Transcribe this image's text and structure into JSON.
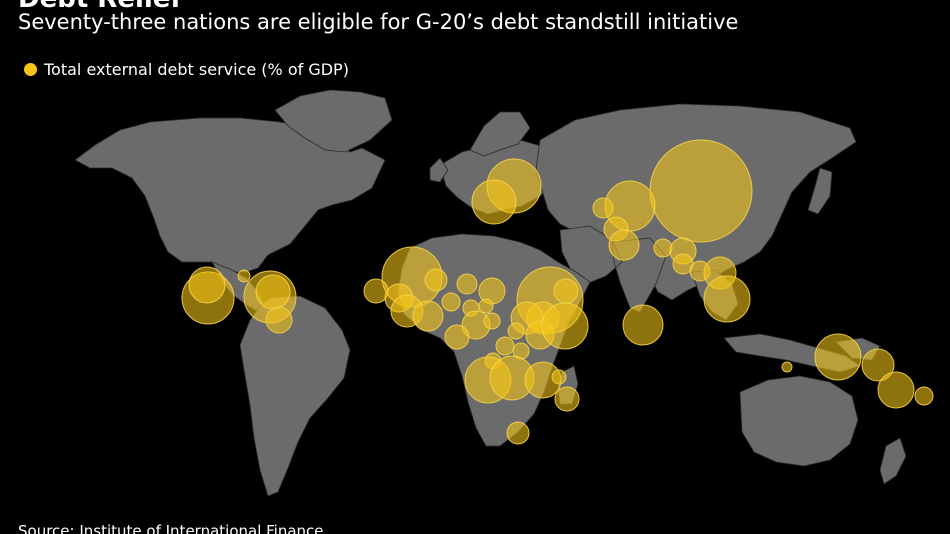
{
  "title": "Debt Relief",
  "subtitle": "Seventy-three nations are eligible for G-20’s debt standstill initiative",
  "legend": {
    "label": "Total external debt service (% of GDP)",
    "color": "#f5c518"
  },
  "source": "Source: Institute of International Finance",
  "colors": {
    "background": "#000000",
    "land": "#6b6b6b",
    "border": "#2a2a2a",
    "bubble_fill": "#f5c518",
    "bubble_stroke": "#f7d44a"
  }
}
